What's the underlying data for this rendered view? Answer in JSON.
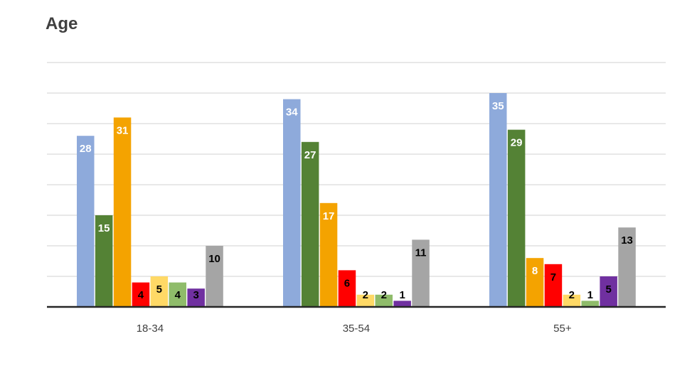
{
  "chart_data": {
    "type": "bar",
    "title": "Age",
    "categories": [
      "18-34",
      "35-54",
      "55+"
    ],
    "ylim": [
      0,
      40
    ],
    "grid": true,
    "series": [
      {
        "values": [
          28,
          34,
          35
        ],
        "color": "#8eaadb",
        "label_color": "#ffffff"
      },
      {
        "values": [
          15,
          27,
          29
        ],
        "color": "#548235",
        "label_color": "#ffffff"
      },
      {
        "values": [
          31,
          17,
          8
        ],
        "color": "#f4a300",
        "label_color": "#ffffff"
      },
      {
        "values": [
          4,
          6,
          7
        ],
        "color": "#ff0000",
        "label_color": "#000000"
      },
      {
        "values": [
          5,
          2,
          2
        ],
        "color": "#ffd966",
        "label_color": "#000000"
      },
      {
        "values": [
          4,
          2,
          1
        ],
        "color": "#8fbc6a",
        "label_color": "#000000"
      },
      {
        "values": [
          3,
          1,
          5
        ],
        "color": "#7030a0",
        "label_color": "#000000"
      },
      {
        "values": [
          10,
          11,
          13
        ],
        "color": "#a5a5a5",
        "label_color": "#000000"
      }
    ]
  }
}
